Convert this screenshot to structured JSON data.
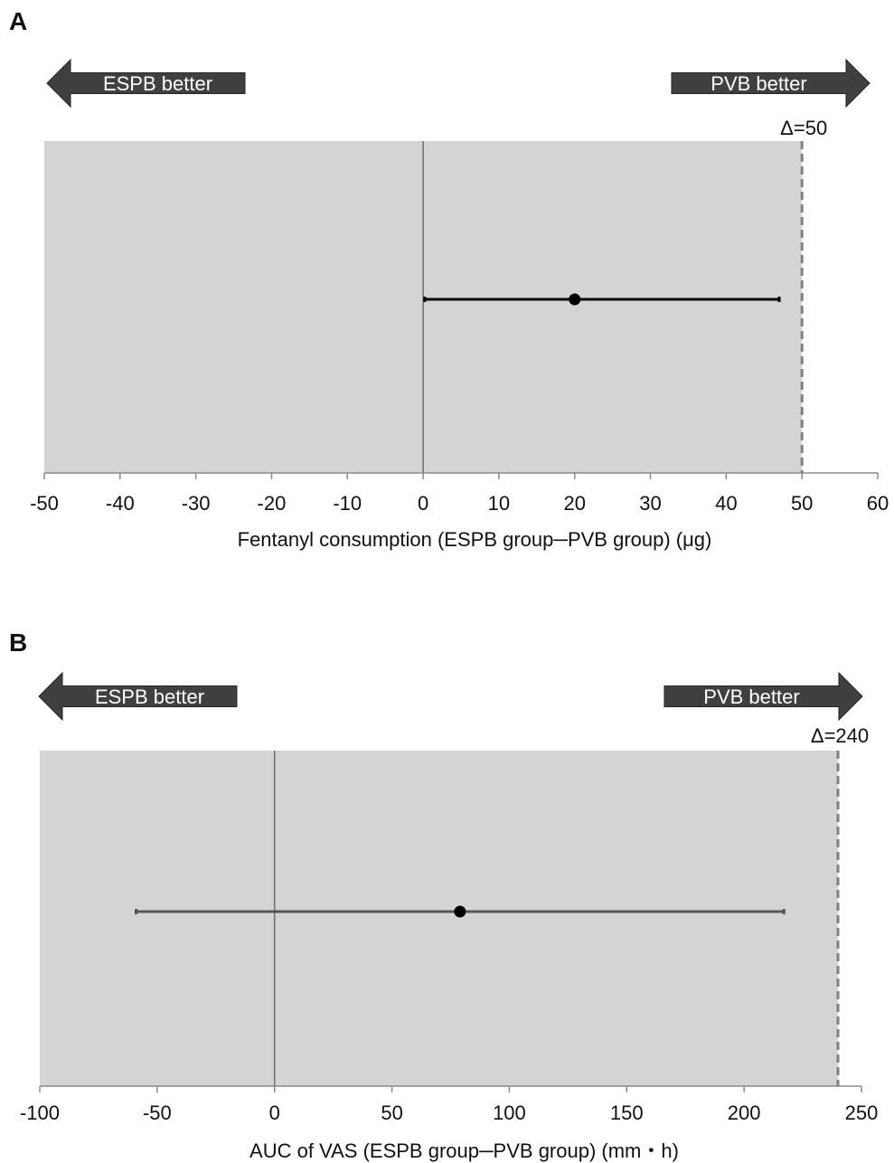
{
  "chart_data": [
    {
      "panel": "A",
      "type": "scatter",
      "xlabel": "Fentanyl consumption (ESPB group─PVB group) (μg)",
      "xlim": [
        -50,
        60
      ],
      "xticks": [
        -50,
        -40,
        -30,
        -20,
        -10,
        0,
        10,
        20,
        30,
        40,
        50,
        60
      ],
      "xtick_labels": [
        "-50",
        "-40",
        "-30",
        "-20",
        "-10",
        "0",
        "10",
        "20",
        "30",
        "40",
        "50",
        "60"
      ],
      "left_arrow": "ESPB better",
      "right_arrow": "PVB better",
      "margin": {
        "label": "Δ=50",
        "value": 50
      },
      "point": {
        "estimate": 20,
        "ci_low": 0.2,
        "ci_high": 47
      },
      "grid": false,
      "colors": {
        "plot_bg": "#d4d4d4",
        "arrow": "#404040",
        "ci_line": "#000000",
        "margin_line": "#808080",
        "zero_line": "#6e6e6e"
      }
    },
    {
      "panel": "B",
      "type": "scatter",
      "xlabel": "AUC of VAS (ESPB group─PVB group) (mm・h)",
      "xlim": [
        -100,
        250
      ],
      "xticks": [
        -100,
        -50,
        0,
        50,
        100,
        150,
        200,
        250
      ],
      "xtick_labels": [
        "-100",
        "-50",
        "0",
        "50",
        "100",
        "150",
        "200",
        "250"
      ],
      "left_arrow": "ESPB better",
      "right_arrow": "PVB better",
      "margin": {
        "label": "Δ=240",
        "value": 240
      },
      "point": {
        "estimate": 79,
        "ci_low": -59,
        "ci_high": 217
      },
      "grid": false,
      "colors": {
        "plot_bg": "#d4d4d4",
        "arrow": "#404040",
        "ci_line": "#555555",
        "margin_line": "#808080",
        "zero_line": "#6e6e6e"
      }
    }
  ]
}
